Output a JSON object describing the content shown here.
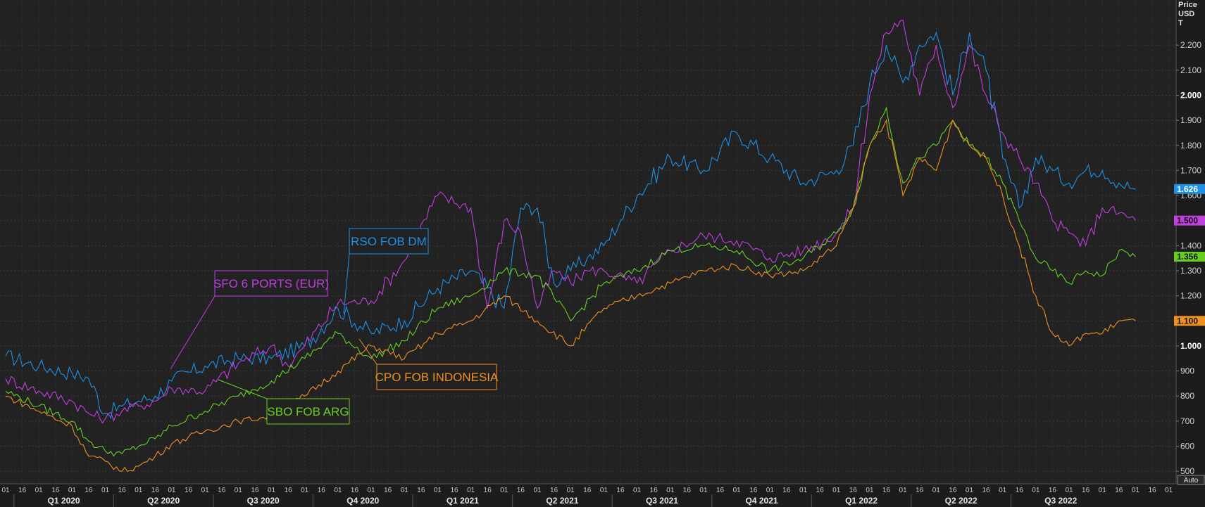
{
  "chart_data": {
    "type": "line",
    "axis_title": [
      "Price",
      "USD",
      "T"
    ],
    "ylim": [
      450,
      2380
    ],
    "y_ticks": [
      {
        "value": 500,
        "label": "500",
        "bold": false
      },
      {
        "value": 600,
        "label": "600",
        "bold": false
      },
      {
        "value": 700,
        "label": "700",
        "bold": false
      },
      {
        "value": 800,
        "label": "800",
        "bold": false
      },
      {
        "value": 900,
        "label": "900",
        "bold": false
      },
      {
        "value": 1000,
        "label": "1.000",
        "bold": true
      },
      {
        "value": 1100,
        "label": "1.100",
        "bold": false
      },
      {
        "value": 1200,
        "label": "1.200",
        "bold": false
      },
      {
        "value": 1300,
        "label": "1.300",
        "bold": false
      },
      {
        "value": 1400,
        "label": "1.400",
        "bold": false
      },
      {
        "value": 1500,
        "label": "1.500",
        "bold": false
      },
      {
        "value": 1600,
        "label": "1.600",
        "bold": false
      },
      {
        "value": 1700,
        "label": "1.700",
        "bold": false
      },
      {
        "value": 1800,
        "label": "1.800",
        "bold": false
      },
      {
        "value": 1900,
        "label": "1.900",
        "bold": false
      },
      {
        "value": 2000,
        "label": "2.000",
        "bold": true
      },
      {
        "value": 2100,
        "label": "2.100",
        "bold": false
      },
      {
        "value": 2200,
        "label": "2.200",
        "bold": false
      }
    ],
    "auto_label": "Auto",
    "quarters": [
      "Q1 2020",
      "Q2 2020",
      "Q3 2020",
      "Q4 2020",
      "Q1 2021",
      "Q2 2021",
      "Q3 2021",
      "Q4 2021",
      "Q1 2022",
      "Q2 2022",
      "Q3 2022"
    ],
    "day_ticks": [
      "01",
      "16",
      "01",
      "16",
      "01",
      "16",
      "01",
      "16",
      "01",
      "16",
      "01",
      "16",
      "01",
      "16",
      "01",
      "16",
      "01",
      "16",
      "01",
      "16",
      "01",
      "16",
      "01",
      "16",
      "01",
      "16",
      "01",
      "16",
      "01",
      "16",
      "01",
      "16",
      "01",
      "16",
      "01",
      "16",
      "01",
      "16",
      "01",
      "16",
      "01",
      "16",
      "01",
      "16",
      "01",
      "16",
      "01",
      "16",
      "01",
      "16",
      "01",
      "16",
      "01",
      "16",
      "01",
      "16",
      "01",
      "16",
      "01",
      "16",
      "01",
      "16",
      "01",
      "16",
      "01",
      "16",
      "01",
      "16",
      "01",
      "16",
      "01"
    ],
    "x_index_range": [
      0,
      69
    ],
    "series": [
      {
        "name": "RSO FOB DM",
        "color": "#1e90e6",
        "last_value": "1.626",
        "x": [
          0,
          2,
          4,
          5,
          6,
          7,
          8,
          9,
          10,
          12,
          14,
          16,
          18,
          20,
          22,
          24,
          26,
          28,
          30,
          31,
          32,
          33,
          34,
          35,
          36,
          37,
          38,
          40,
          42,
          44,
          46,
          48,
          50,
          51,
          52,
          53,
          54,
          55,
          56,
          57,
          58,
          59,
          60,
          61,
          62,
          63,
          64,
          65,
          66,
          67,
          68
        ],
        "values": [
          960,
          920,
          890,
          870,
          730,
          760,
          780,
          800,
          860,
          920,
          950,
          950,
          1000,
          1150,
          1050,
          1100,
          1230,
          1300,
          1150,
          1550,
          1550,
          1250,
          1300,
          1350,
          1400,
          1500,
          1600,
          1750,
          1700,
          1850,
          1750,
          1650,
          1700,
          1800,
          2050,
          2200,
          2050,
          2200,
          2250,
          2000,
          2250,
          2100,
          1750,
          1550,
          1750,
          1700,
          1650,
          1700,
          1700,
          1650,
          1626
        ]
      },
      {
        "name": "SFO 6 PORTS (EUR)",
        "color": "#c040e0",
        "last_value": "1.500",
        "x": [
          0,
          2,
          4,
          5,
          6,
          7,
          8,
          9,
          10,
          12,
          14,
          16,
          17,
          18,
          20,
          22,
          24,
          26,
          28,
          29,
          30,
          31,
          32,
          33,
          34,
          35,
          36,
          38,
          40,
          42,
          44,
          46,
          48,
          50,
          51,
          52,
          53,
          54,
          55,
          56,
          57,
          58,
          59,
          60,
          61,
          62,
          63,
          64,
          65,
          66,
          67,
          68
        ],
        "values": [
          870,
          820,
          780,
          730,
          710,
          740,
          760,
          780,
          830,
          820,
          930,
          1000,
          920,
          1000,
          1170,
          1180,
          1340,
          1600,
          1550,
          1150,
          1500,
          1450,
          1150,
          1300,
          1250,
          1300,
          1300,
          1250,
          1380,
          1440,
          1420,
          1350,
          1380,
          1450,
          1550,
          2000,
          2250,
          2300,
          2000,
          2200,
          1950,
          2200,
          2000,
          1850,
          1750,
          1650,
          1500,
          1450,
          1400,
          1550,
          1530,
          1500
        ]
      },
      {
        "name": "SBO FOB ARG",
        "color": "#66d020",
        "last_value": "1.356",
        "x": [
          0,
          2,
          4,
          5,
          6,
          7,
          8,
          9,
          10,
          12,
          14,
          16,
          18,
          20,
          22,
          24,
          26,
          28,
          30,
          32,
          34,
          36,
          38,
          40,
          42,
          44,
          46,
          48,
          50,
          51,
          52,
          53,
          54,
          55,
          56,
          57,
          58,
          59,
          60,
          61,
          62,
          63,
          64,
          65,
          66,
          67,
          68
        ],
        "values": [
          820,
          760,
          700,
          620,
          580,
          570,
          600,
          630,
          680,
          740,
          800,
          860,
          950,
          1050,
          950,
          1020,
          1150,
          1200,
          1300,
          1280,
          1100,
          1250,
          1300,
          1380,
          1400,
          1380,
          1300,
          1350,
          1450,
          1550,
          1800,
          1950,
          1650,
          1750,
          1800,
          1900,
          1800,
          1750,
          1650,
          1500,
          1350,
          1300,
          1250,
          1300,
          1280,
          1380,
          1356
        ]
      },
      {
        "name": "CPO FOB INDONESIA",
        "color": "#f09020",
        "last_value": "1.100",
        "x": [
          0,
          2,
          4,
          5,
          6,
          7,
          8,
          9,
          10,
          12,
          14,
          16,
          18,
          20,
          22,
          24,
          26,
          28,
          30,
          32,
          34,
          36,
          38,
          40,
          42,
          44,
          46,
          48,
          50,
          51,
          52,
          53,
          54,
          55,
          56,
          57,
          58,
          59,
          60,
          61,
          62,
          63,
          64,
          65,
          66,
          67,
          68
        ],
        "values": [
          800,
          740,
          680,
          560,
          540,
          500,
          520,
          560,
          610,
          660,
          700,
          720,
          800,
          900,
          1000,
          950,
          1050,
          1100,
          1200,
          1100,
          1000,
          1150,
          1200,
          1250,
          1300,
          1320,
          1280,
          1300,
          1400,
          1550,
          1800,
          1900,
          1600,
          1750,
          1700,
          1900,
          1800,
          1750,
          1600,
          1400,
          1200,
          1050,
          1000,
          1050,
          1050,
          1100,
          1100
        ]
      }
    ]
  },
  "callouts": [
    {
      "text": "RSO FOB DM",
      "color": "#1e90e6"
    },
    {
      "text": "SFO 6 PORTS (EUR)",
      "color": "#c040e0"
    },
    {
      "text": "CPO FOB INDONESIA",
      "color": "#f09020"
    },
    {
      "text": "SBO FOB ARG",
      "color": "#66d020"
    }
  ]
}
